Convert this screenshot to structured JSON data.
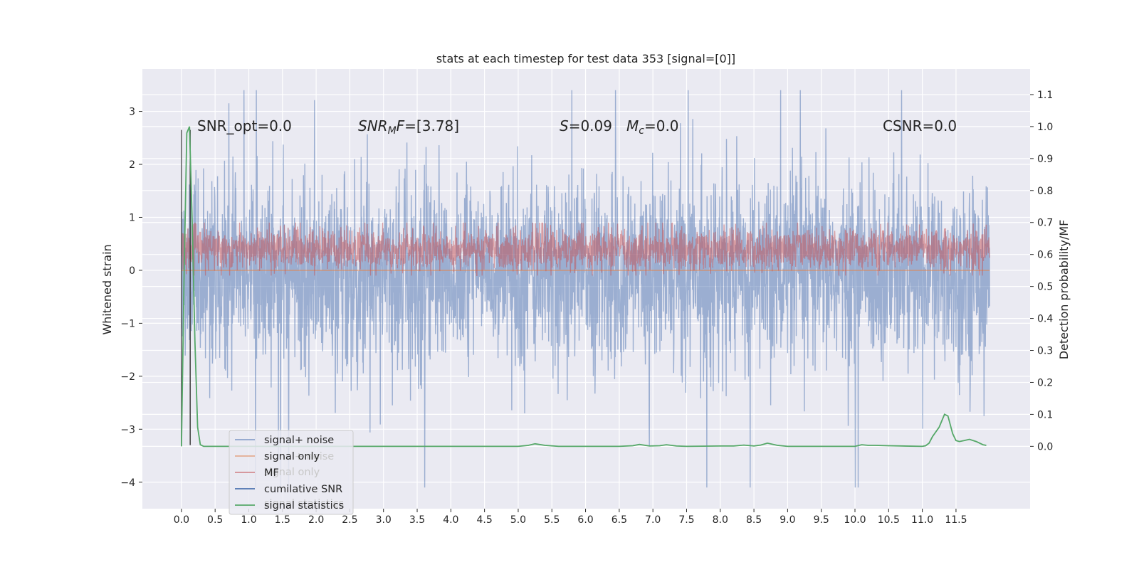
{
  "chart_data": {
    "type": "line",
    "title": "stats at each timestep for test data 353 [signal=[0]]",
    "xlabel": "",
    "ylabel": "Whitened strain",
    "y2label": "Detection probability/MF",
    "xlim": [
      -0.58,
      12.6
    ],
    "ylim": [
      -4.5,
      3.8
    ],
    "y2lim": [
      -0.195,
      1.18
    ],
    "xticks": [
      "0.0",
      "0.5",
      "1.0",
      "1.5",
      "2.0",
      "2.5",
      "3.0",
      "3.5",
      "4.0",
      "4.5",
      "5.0",
      "5.5",
      "6.0",
      "6.5",
      "7.0",
      "7.5",
      "8.0",
      "8.5",
      "9.0",
      "9.5",
      "10.0",
      "10.5",
      "11.0",
      "11.5"
    ],
    "yticks": [
      "3",
      "2",
      "1",
      "0",
      "−1",
      "−2",
      "−3",
      "−4"
    ],
    "y2ticks": [
      "1.1",
      "1.0",
      "0.9",
      "0.8",
      "0.7",
      "0.6",
      "0.5",
      "0.4",
      "0.3",
      "0.2",
      "0.1",
      "0.0"
    ],
    "grid": true,
    "legend_position": "lower-left",
    "annotations": {
      "snr_opt": "SNR_opt=0.0",
      "snr_mf_a": "SNR",
      "snr_mf_sub": "M",
      "snr_mf_b": "F",
      "snr_mf_c": "=[3.78]",
      "s_a": "S",
      "s_b": "=0.09",
      "mc_a": "M",
      "mc_sub": "c",
      "mc_b": "=0.0",
      "csnr": "CSNR=0.0"
    },
    "legend_hidden": [
      "signal+ noise",
      "signal only",
      "MF",
      "cumilative SNR",
      "signal statistics"
    ],
    "series": [
      {
        "name": "signal+ noise",
        "color": "#4c72b0",
        "axis": "left",
        "kind": "noise",
        "sample_dt": 0.004,
        "x_range": [
          0.0,
          12.0
        ],
        "envelope_typical": [
          -1.5,
          1.4
        ],
        "extreme_min": -4.1,
        "extreme_max": 3.4
      },
      {
        "name": "signal only",
        "color": "#dd8452",
        "axis": "left",
        "kind": "flat",
        "x_range": [
          0.0,
          12.0
        ],
        "value": 0.0
      },
      {
        "name": "MF",
        "color": "#c44e52",
        "axis": "left",
        "kind": "noise",
        "sample_dt": 0.004,
        "x_range": [
          0.0,
          12.0
        ],
        "envelope_typical": [
          0.05,
          0.75
        ],
        "extreme_min": -0.1,
        "extreme_max": 0.9
      },
      {
        "name": "cumilative SNR",
        "color": "#4c72b0",
        "axis": "left",
        "kind": "vlines",
        "x": [
          0.0,
          0.13
        ],
        "y_range": [
          -3.3,
          2.65
        ]
      },
      {
        "name": "signal statistics",
        "color": "#55a868",
        "axis": "right",
        "x": [
          0.0,
          0.04,
          0.08,
          0.12,
          0.16,
          0.2,
          0.24,
          0.28,
          0.33,
          0.5,
          1.0,
          2.0,
          3.0,
          4.0,
          5.0,
          5.15,
          5.25,
          5.4,
          5.6,
          6.0,
          6.5,
          6.7,
          6.8,
          6.95,
          7.1,
          7.2,
          7.35,
          7.5,
          8.0,
          8.2,
          8.35,
          8.5,
          8.6,
          8.7,
          8.85,
          9.0,
          10.0,
          10.1,
          10.2,
          10.3,
          10.5,
          11.0,
          11.05,
          11.1,
          11.15,
          11.25,
          11.33,
          11.38,
          11.45,
          11.5,
          11.55,
          11.62,
          11.7,
          11.8,
          11.9,
          11.95
        ],
        "values": [
          0.0,
          0.55,
          0.98,
          1.0,
          0.7,
          0.33,
          0.06,
          0.005,
          0.0,
          0.0,
          0.0,
          0.0,
          0.0,
          0.0,
          0.0,
          0.003,
          0.008,
          0.003,
          0.0,
          0.0,
          0.0,
          0.002,
          0.006,
          0.001,
          0.002,
          0.005,
          0.001,
          0.0,
          0.001,
          0.001,
          0.004,
          0.001,
          0.004,
          0.01,
          0.003,
          0.0,
          0.0,
          0.005,
          0.003,
          0.003,
          0.002,
          0.0,
          0.002,
          0.01,
          0.03,
          0.06,
          0.1,
          0.095,
          0.04,
          0.018,
          0.015,
          0.018,
          0.022,
          0.015,
          0.005,
          0.003
        ]
      }
    ]
  }
}
